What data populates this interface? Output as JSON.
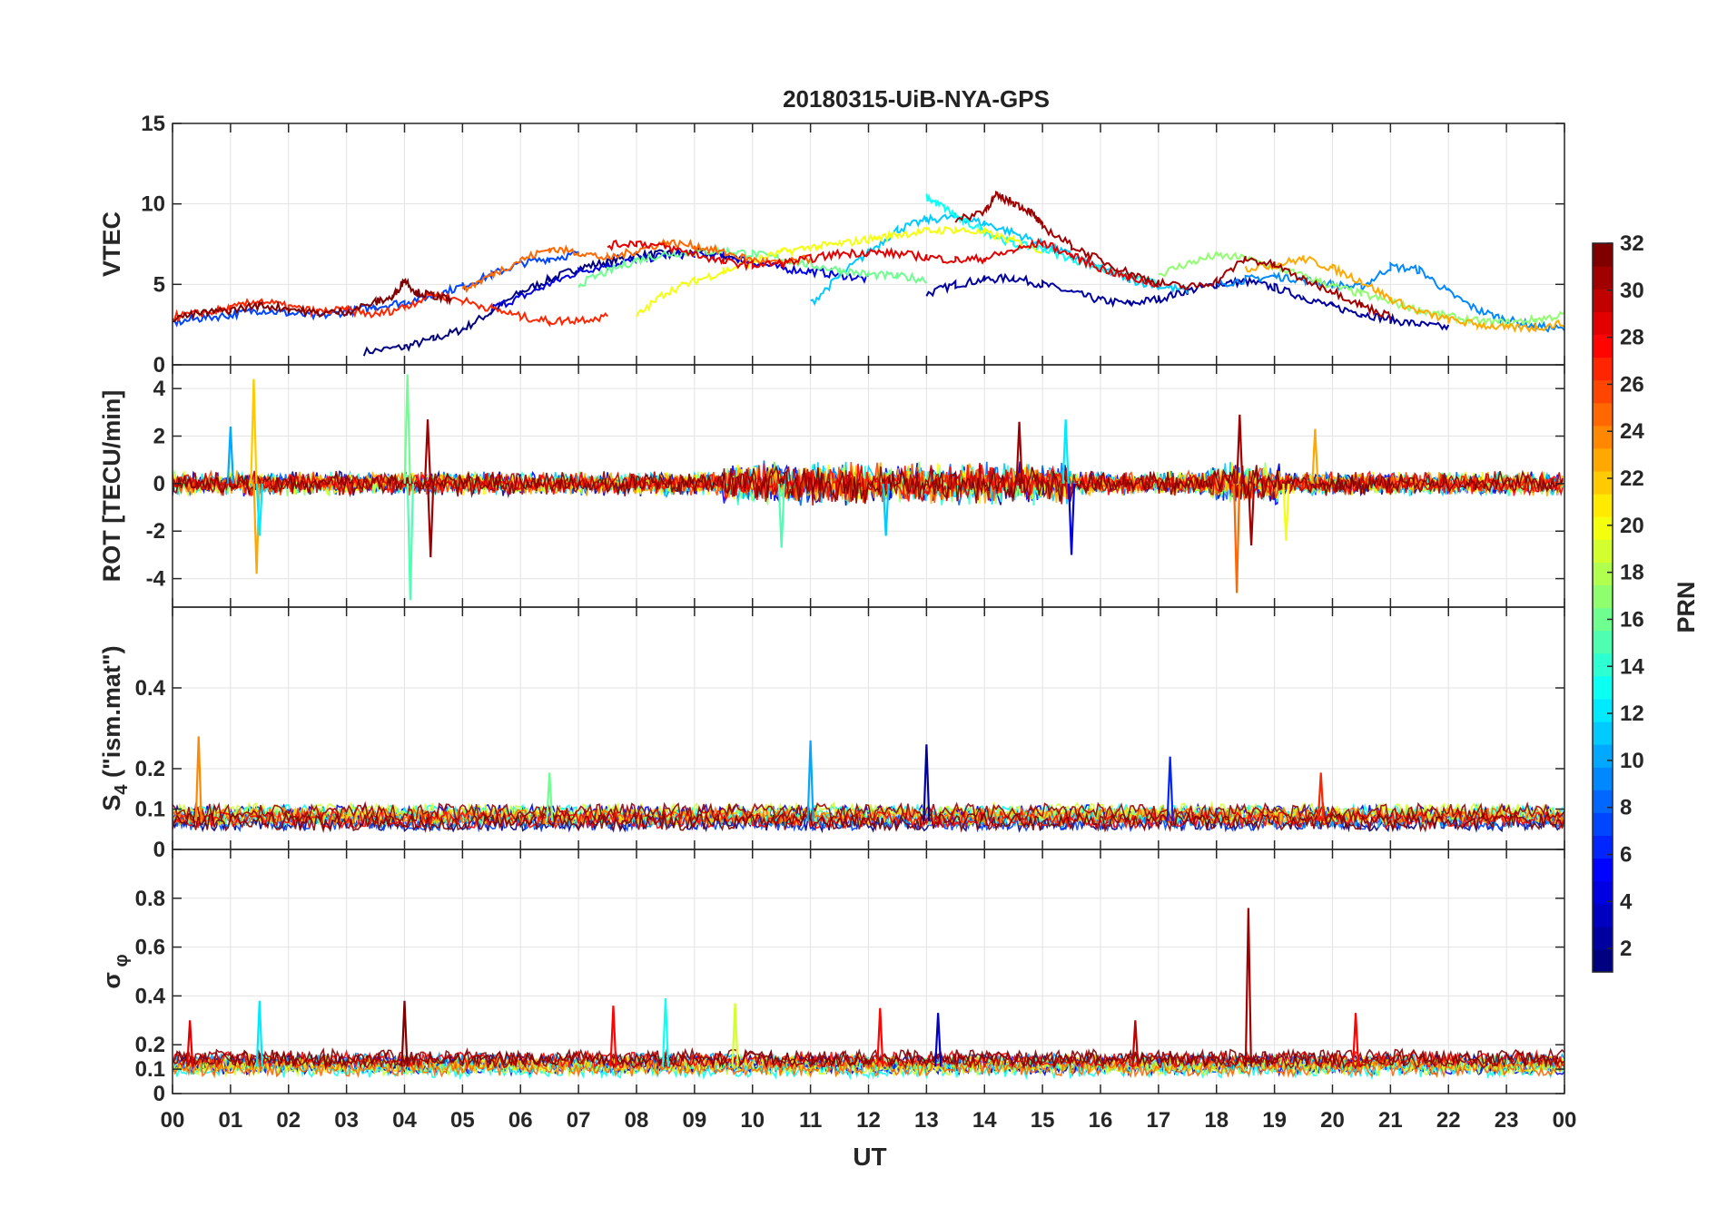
{
  "chart_data": {
    "type": "line",
    "title": "20180315-UiB-NYA-GPS",
    "xlabel": "UT",
    "x_ticks": [
      "00",
      "01",
      "02",
      "03",
      "04",
      "05",
      "06",
      "07",
      "08",
      "09",
      "10",
      "11",
      "12",
      "13",
      "14",
      "15",
      "16",
      "17",
      "18",
      "19",
      "20",
      "21",
      "22",
      "23",
      "00"
    ],
    "xlim": [
      0,
      24
    ],
    "grid": true,
    "colorbar": {
      "label": "PRN",
      "range": [
        1,
        32
      ],
      "ticks": [
        "2",
        "4",
        "6",
        "8",
        "10",
        "12",
        "14",
        "16",
        "18",
        "20",
        "22",
        "24",
        "26",
        "28",
        "30",
        "32"
      ],
      "colormap": "jet"
    },
    "panels": [
      {
        "ylabel": "VTEC",
        "ylim": [
          0,
          15
        ],
        "yticks": [
          "0",
          "5",
          "10",
          "15"
        ],
        "series": [
          {
            "prn": 1,
            "x": [
              3.3,
              4.0,
              4.5,
              5.0,
              5.5,
              6.0,
              6.5,
              7.0,
              7.5,
              8.0,
              8.5,
              9.0,
              9.5,
              10.0
            ],
            "y": [
              0.8,
              1.1,
              1.6,
              2.2,
              3.3,
              4.5,
              5.3,
              6.0,
              6.4,
              6.8,
              6.9,
              7.0,
              6.8,
              6.4
            ]
          },
          {
            "prn": 2,
            "x": [
              13.0,
              13.5,
              14.0,
              14.5,
              15.0,
              15.5,
              16.0,
              16.5,
              17.0,
              17.5,
              18.0,
              18.5,
              19.0,
              19.5,
              20.0,
              20.5,
              21.0,
              21.5,
              22.0
            ],
            "y": [
              4.4,
              5.0,
              5.3,
              5.4,
              5.0,
              4.5,
              4.0,
              3.8,
              4.1,
              4.6,
              5.0,
              5.2,
              4.8,
              4.2,
              3.6,
              3.2,
              2.8,
              2.5,
              2.3
            ]
          },
          {
            "prn": 4,
            "x": [
              5.5,
              6.0,
              6.5,
              7.0,
              7.5,
              8.0,
              8.5,
              9.0,
              9.5,
              10.0,
              10.5,
              11.0,
              11.5,
              12.0
            ],
            "y": [
              3.5,
              4.2,
              5.0,
              5.8,
              6.2,
              6.5,
              6.8,
              6.9,
              6.8,
              6.4,
              6.0,
              5.8,
              5.6,
              5.3
            ]
          },
          {
            "prn": 7,
            "x": [
              0.0,
              0.5,
              1.0,
              1.5,
              2.0,
              2.5,
              3.0,
              3.5,
              4.0,
              4.5,
              5.0,
              5.5,
              6.0,
              6.5,
              7.0
            ],
            "y": [
              2.6,
              2.9,
              3.1,
              3.4,
              3.2,
              3.0,
              3.3,
              3.6,
              3.9,
              4.3,
              4.9,
              5.6,
              6.3,
              6.6,
              6.9
            ]
          },
          {
            "prn": 9,
            "x": [
              18.0,
              18.5,
              19.0,
              19.5,
              20.0,
              20.5,
              21.0,
              21.5,
              22.0,
              22.5,
              23.0,
              23.5,
              24.0
            ],
            "y": [
              5.0,
              5.3,
              5.5,
              5.3,
              5.0,
              4.8,
              6.1,
              5.9,
              4.5,
              3.4,
              2.8,
              2.4,
              2.2
            ]
          },
          {
            "prn": 11,
            "x": [
              11.0,
              11.5,
              12.0,
              12.5,
              13.0,
              13.5,
              14.0,
              14.5,
              15.0,
              15.5,
              16.0,
              16.5,
              17.0,
              17.5
            ],
            "y": [
              3.8,
              5.5,
              7.0,
              8.4,
              9.0,
              9.2,
              8.8,
              8.2,
              7.5,
              6.8,
              6.0,
              5.3,
              4.9,
              4.6
            ]
          },
          {
            "prn": 13,
            "x": [
              13.0,
              13.3,
              13.6,
              14.0,
              14.5,
              15.0,
              15.5,
              16.0,
              16.5,
              17.0
            ],
            "y": [
              10.4,
              9.8,
              9.0,
              8.3,
              7.5,
              7.2,
              6.6,
              6.0,
              5.5,
              5.0
            ]
          },
          {
            "prn": 16,
            "x": [
              7.0,
              7.5,
              8.0,
              8.5,
              9.0,
              9.5,
              10.0,
              10.5,
              11.0,
              11.5,
              12.0,
              12.5,
              13.0
            ],
            "y": [
              5.0,
              5.8,
              6.5,
              6.9,
              7.0,
              7.1,
              6.9,
              6.6,
              6.2,
              5.9,
              5.6,
              5.5,
              5.3
            ]
          },
          {
            "prn": 17,
            "x": [
              17.0,
              17.5,
              18.0,
              18.5,
              19.0,
              19.5,
              20.0,
              20.5,
              21.0,
              21.5,
              22.0,
              22.5,
              23.0,
              23.5,
              24.0
            ],
            "y": [
              5.6,
              6.3,
              6.8,
              6.6,
              6.1,
              5.5,
              4.9,
              4.4,
              3.9,
              3.4,
              3.0,
              2.7,
              2.6,
              2.8,
              3.1
            ]
          },
          {
            "prn": 20,
            "x": [
              8.0,
              8.5,
              9.0,
              9.5,
              10.0,
              10.5,
              11.0,
              11.5,
              12.0,
              12.5,
              13.0,
              13.5,
              14.0,
              14.5,
              15.0
            ],
            "y": [
              3.0,
              4.5,
              5.2,
              5.8,
              6.4,
              7.0,
              7.3,
              7.5,
              7.8,
              8.1,
              8.3,
              8.4,
              8.2,
              7.7,
              7.1
            ]
          },
          {
            "prn": 23,
            "x": [
              18.5,
              19.0,
              19.5,
              20.0,
              20.5,
              21.0,
              21.5,
              22.0,
              22.5,
              23.0,
              23.5,
              24.0
            ],
            "y": [
              6.0,
              6.2,
              6.6,
              6.0,
              5.2,
              4.1,
              3.3,
              2.8,
              2.5,
              2.3,
              2.3,
              2.6
            ]
          },
          {
            "prn": 25,
            "x": [
              5.0,
              5.5,
              6.0,
              6.5,
              7.0,
              7.5,
              8.0,
              8.5,
              9.0,
              9.5,
              10.0,
              10.5,
              11.0
            ],
            "y": [
              4.6,
              5.6,
              6.5,
              7.2,
              7.0,
              6.6,
              7.1,
              7.6,
              7.4,
              7.0,
              6.5,
              6.3,
              6.6
            ]
          },
          {
            "prn": 27,
            "x": [
              0.0,
              0.5,
              1.0,
              1.5,
              2.0,
              2.5,
              3.0,
              3.5,
              4.0,
              4.5,
              5.0,
              5.5,
              6.0,
              6.5,
              7.0,
              7.5
            ],
            "y": [
              3.0,
              3.2,
              3.5,
              4.0,
              3.6,
              3.3,
              3.4,
              3.1,
              3.6,
              4.4,
              4.0,
              3.5,
              3.0,
              2.7,
              2.8,
              3.0
            ]
          },
          {
            "prn": 29,
            "x": [
              7.5,
              8.0,
              8.5,
              9.0,
              9.5,
              10.0,
              10.5,
              11.0,
              11.5,
              12.0,
              12.5,
              13.0,
              13.5,
              14.0,
              14.5,
              15.0,
              15.5,
              16.0,
              16.5,
              17.0
            ],
            "y": [
              7.4,
              7.6,
              7.3,
              6.9,
              6.4,
              6.2,
              6.3,
              6.6,
              6.9,
              7.0,
              6.9,
              6.7,
              6.5,
              6.6,
              7.1,
              7.6,
              6.8,
              6.0,
              5.4,
              5.0
            ]
          },
          {
            "prn": 31,
            "x": [
              13.5,
              14.0,
              14.2,
              14.5,
              14.8,
              15.0,
              15.5,
              16.0,
              16.5,
              17.0,
              17.5,
              18.0,
              18.5,
              19.0,
              19.5,
              20.0,
              20.5,
              21.0
            ],
            "y": [
              8.9,
              9.6,
              10.5,
              10.1,
              9.5,
              8.6,
              7.4,
              6.5,
              5.7,
              5.1,
              4.8,
              5.2,
              6.6,
              6.2,
              5.3,
              4.6,
              3.7,
              3.0
            ]
          },
          {
            "prn": 32,
            "x": [
              0.0,
              0.5,
              1.0,
              1.5,
              2.0,
              2.5,
              3.0,
              3.5,
              3.8,
              4.0,
              4.2,
              4.5,
              4.8
            ],
            "y": [
              2.9,
              3.2,
              3.4,
              3.7,
              3.5,
              3.2,
              3.3,
              3.9,
              4.2,
              5.3,
              4.5,
              4.3,
              4.0
            ]
          }
        ]
      },
      {
        "ylabel": "ROT [TECU/min]",
        "ylim": [
          -5.2,
          5
        ],
        "yticks": [
          "-4",
          "-2",
          "0",
          "2",
          "4"
        ],
        "noise_level": 0.4,
        "spikes": [
          {
            "x": 1.0,
            "y": 2.4,
            "prn": 10
          },
          {
            "x": 1.4,
            "y": 4.4,
            "prn": 22
          },
          {
            "x": 1.45,
            "y": -3.8,
            "prn": 23
          },
          {
            "x": 1.5,
            "y": -2.2,
            "prn": 12
          },
          {
            "x": 4.05,
            "y": 4.6,
            "prn": 16
          },
          {
            "x": 4.1,
            "y": -4.9,
            "prn": 15
          },
          {
            "x": 4.4,
            "y": 2.7,
            "prn": 31
          },
          {
            "x": 4.45,
            "y": -3.1,
            "prn": 31
          },
          {
            "x": 10.5,
            "y": -2.7,
            "prn": 15
          },
          {
            "x": 12.3,
            "y": -2.2,
            "prn": 11
          },
          {
            "x": 14.6,
            "y": 2.6,
            "prn": 31
          },
          {
            "x": 15.4,
            "y": 2.7,
            "prn": 12
          },
          {
            "x": 15.5,
            "y": -3.0,
            "prn": 4
          },
          {
            "x": 18.35,
            "y": -4.6,
            "prn": 25
          },
          {
            "x": 18.4,
            "y": 2.9,
            "prn": 31
          },
          {
            "x": 18.6,
            "y": -2.6,
            "prn": 31
          },
          {
            "x": 19.2,
            "y": -2.4,
            "prn": 20
          },
          {
            "x": 19.7,
            "y": 2.3,
            "prn": 23
          }
        ]
      },
      {
        "ylabel": "S4 (\"ism.mat\")",
        "ylim": [
          0,
          0.6
        ],
        "yticks": [
          "0",
          "0.1",
          "0.2",
          "0.4"
        ],
        "baseline": 0.07,
        "spikes": [
          {
            "x": 0.45,
            "y": 0.28,
            "prn": 24
          },
          {
            "x": 6.5,
            "y": 0.19,
            "prn": 16
          },
          {
            "x": 11.0,
            "y": 0.27,
            "prn": 10
          },
          {
            "x": 13.0,
            "y": 0.26,
            "prn": 2
          },
          {
            "x": 17.2,
            "y": 0.23,
            "prn": 6
          },
          {
            "x": 19.8,
            "y": 0.19,
            "prn": 27
          }
        ]
      },
      {
        "ylabel": "σ_φ",
        "ylim": [
          0,
          1.0
        ],
        "yticks": [
          "0",
          "0.1",
          "0.2",
          "0.4",
          "0.6",
          "0.8"
        ],
        "baseline": 0.11,
        "spikes": [
          {
            "x": 0.3,
            "y": 0.3,
            "prn": 29
          },
          {
            "x": 1.5,
            "y": 0.38,
            "prn": 12
          },
          {
            "x": 4.0,
            "y": 0.38,
            "prn": 32
          },
          {
            "x": 7.6,
            "y": 0.36,
            "prn": 28
          },
          {
            "x": 8.5,
            "y": 0.39,
            "prn": 13
          },
          {
            "x": 9.7,
            "y": 0.37,
            "prn": 19
          },
          {
            "x": 12.2,
            "y": 0.35,
            "prn": 28
          },
          {
            "x": 13.2,
            "y": 0.33,
            "prn": 3
          },
          {
            "x": 16.6,
            "y": 0.3,
            "prn": 30
          },
          {
            "x": 18.55,
            "y": 0.76,
            "prn": 31
          },
          {
            "x": 20.4,
            "y": 0.33,
            "prn": 28
          }
        ]
      }
    ]
  }
}
